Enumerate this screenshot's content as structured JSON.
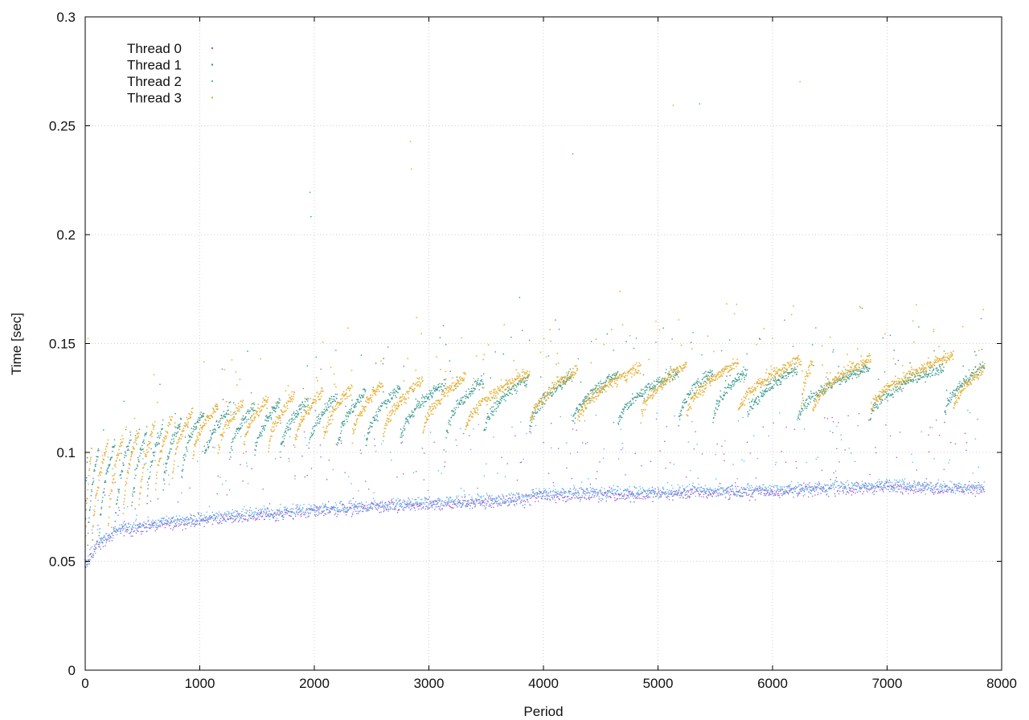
{
  "chart_data": {
    "type": "scatter",
    "title": "",
    "xlabel": "Period",
    "ylabel": "Time [sec]",
    "xlim": [
      0,
      8000
    ],
    "ylim": [
      0,
      0.3
    ],
    "xticks": [
      0,
      1000,
      2000,
      3000,
      4000,
      5000,
      6000,
      7000,
      8000
    ],
    "yticks": [
      0,
      0.05,
      0.1,
      0.15,
      0.2,
      0.25,
      0.3
    ],
    "xtick_labels": [
      "0",
      "1000",
      "2000",
      "3000",
      "4000",
      "5000",
      "6000",
      "7000",
      "8000"
    ],
    "ytick_labels": [
      "0",
      "0.05",
      "0.1",
      "0.15",
      "0.2",
      "0.25",
      "0.3"
    ],
    "grid": true,
    "legend_position": "top-left",
    "series": [
      {
        "name": "Thread 0",
        "color": "#9b59d0",
        "pattern": "baseline",
        "baseline_points": [
          [
            0,
            0.047
          ],
          [
            100,
            0.057
          ],
          [
            300,
            0.064
          ],
          [
            1000,
            0.069
          ],
          [
            2000,
            0.073
          ],
          [
            3000,
            0.076
          ],
          [
            3850,
            0.078
          ],
          [
            3900,
            0.08
          ],
          [
            5000,
            0.081
          ],
          [
            6000,
            0.082
          ],
          [
            7000,
            0.084
          ],
          [
            7850,
            0.083
          ]
        ]
      },
      {
        "name": "Thread 1",
        "color": "#3a9a8f",
        "pattern": "sawtooth",
        "resets": [
          20,
          120,
          260,
          400,
          540,
          680,
          840,
          1040,
          1260,
          1480,
          1700,
          1950,
          2200,
          2450,
          2750,
          3150,
          3480,
          3880,
          4250,
          4650,
          5180,
          5480,
          5780,
          6220,
          6850,
          7500,
          7850
        ],
        "baseline_points": [
          [
            0,
            0.05
          ],
          [
            1000,
            0.095
          ],
          [
            2000,
            0.1
          ],
          [
            3000,
            0.105
          ],
          [
            4000,
            0.11
          ],
          [
            6000,
            0.115
          ],
          [
            7850,
            0.115
          ]
        ],
        "peak_points": [
          [
            0,
            0.1
          ],
          [
            1000,
            0.118
          ],
          [
            2000,
            0.125
          ],
          [
            3000,
            0.132
          ],
          [
            4000,
            0.135
          ],
          [
            6000,
            0.138
          ],
          [
            7850,
            0.14
          ]
        ]
      },
      {
        "name": "Thread 2",
        "color": "#56b4e9",
        "pattern": "baseline",
        "baseline_points": [
          [
            0,
            0.048
          ],
          [
            100,
            0.058
          ],
          [
            300,
            0.065
          ],
          [
            1000,
            0.07
          ],
          [
            2000,
            0.074
          ],
          [
            3000,
            0.077
          ],
          [
            3850,
            0.079
          ],
          [
            3900,
            0.081
          ],
          [
            5000,
            0.082
          ],
          [
            6000,
            0.083
          ],
          [
            7000,
            0.085
          ],
          [
            7850,
            0.084
          ]
        ]
      },
      {
        "name": "Thread 3",
        "color": "#e6b23c",
        "pattern": "sawtooth",
        "resets": [
          60,
          200,
          330,
          470,
          610,
          760,
          940,
          1160,
          1380,
          1600,
          1830,
          2080,
          2330,
          2600,
          2950,
          3320,
          3880,
          4300,
          4850,
          5250,
          5700,
          6250,
          6350,
          6860,
          7580
        ],
        "baseline_points": [
          [
            0,
            0.05
          ],
          [
            1000,
            0.098
          ],
          [
            2000,
            0.103
          ],
          [
            3000,
            0.108
          ],
          [
            4000,
            0.112
          ],
          [
            6000,
            0.118
          ],
          [
            7850,
            0.118
          ]
        ],
        "peak_points": [
          [
            0,
            0.102
          ],
          [
            1000,
            0.12
          ],
          [
            2000,
            0.128
          ],
          [
            3000,
            0.134
          ],
          [
            4000,
            0.137
          ],
          [
            6000,
            0.142
          ],
          [
            7850,
            0.145
          ]
        ]
      }
    ]
  }
}
